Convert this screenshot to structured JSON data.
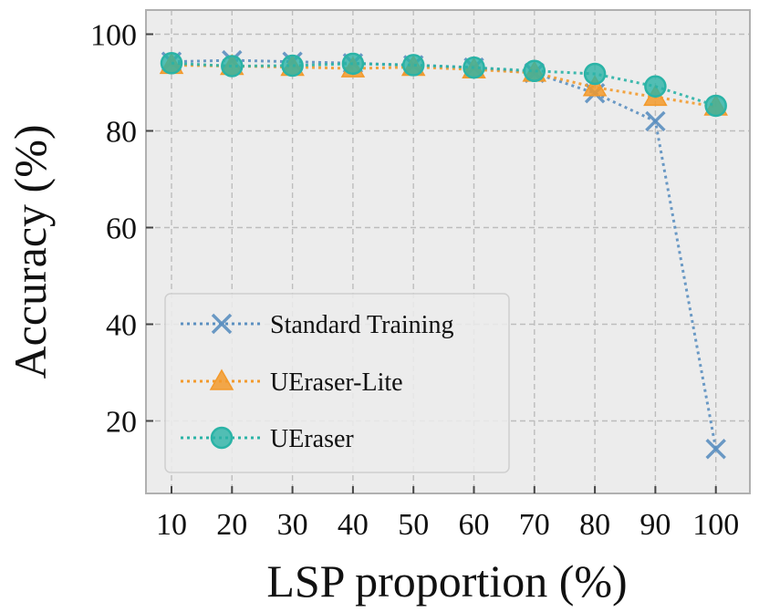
{
  "chart_data": {
    "type": "line",
    "title": "",
    "xlabel": "LSP proportion (%)",
    "ylabel": "Accuracy (%)",
    "x": [
      10,
      20,
      30,
      40,
      50,
      60,
      70,
      80,
      90,
      100
    ],
    "x_tick_labels": [
      "10",
      "20",
      "30",
      "40",
      "50",
      "60",
      "70",
      "80",
      "90",
      "100"
    ],
    "y_ticks": [
      20,
      40,
      60,
      80,
      100
    ],
    "y_tick_labels": [
      "20",
      "40",
      "60",
      "80",
      "100"
    ],
    "ylim": [
      5,
      105
    ],
    "grid": true,
    "legend_position": "lower-left",
    "background_color": "#ececec",
    "series": [
      {
        "name": "Standard Training",
        "marker": "x",
        "color": "#5b8fc0",
        "line_style": "dotted",
        "values": [
          94.3,
          94.6,
          94.3,
          94.0,
          93.6,
          93.1,
          92.0,
          87.8,
          82.0,
          14.2
        ]
      },
      {
        "name": "UEraser-Lite",
        "marker": "triangle",
        "color": "#f39a2c",
        "line_style": "dotted",
        "values": [
          93.6,
          93.4,
          93.2,
          92.9,
          93.2,
          92.7,
          92.0,
          89.0,
          87.0,
          85.0
        ]
      },
      {
        "name": "UEraser",
        "marker": "circle",
        "color": "#2ab3a6",
        "line_style": "dotted",
        "values": [
          94.0,
          93.4,
          93.5,
          93.9,
          93.6,
          93.1,
          92.4,
          91.8,
          89.2,
          85.2
        ]
      }
    ]
  }
}
